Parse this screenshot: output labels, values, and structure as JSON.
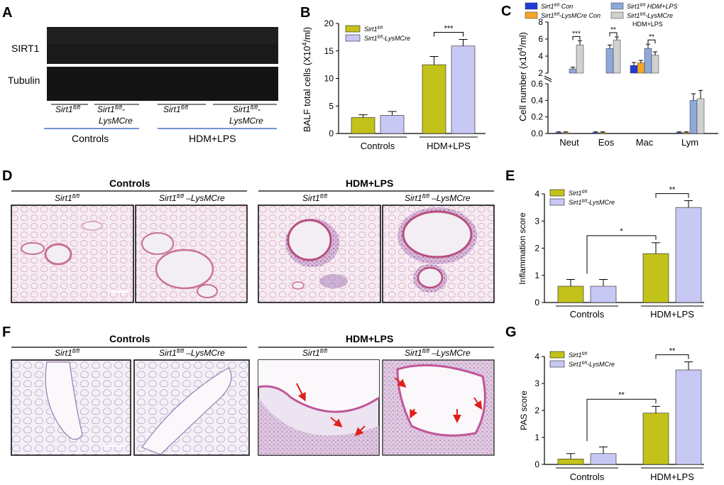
{
  "panels": {
    "A": {
      "letter": "A",
      "row_labels": [
        "SIRT1",
        "Tubulin"
      ],
      "groups": [
        {
          "line1": "Sirt1",
          "sup1": "fl/fl",
          "line2": "",
          "sup2": ""
        },
        {
          "line1": "Sirt1",
          "sup1": "fl/fl",
          "line1b": "-",
          "line2": "LysMCre"
        },
        {
          "line1": "Sirt1",
          "sup1": "fl/fl",
          "line2": "",
          "sup2": ""
        },
        {
          "line1": "Sirt1",
          "sup1": "fl/fl",
          "line1b": "-",
          "line2": "LysMCre"
        }
      ],
      "conditions": [
        "Controls",
        "HDM+LPS"
      ]
    },
    "B": {
      "letter": "B"
    },
    "C": {
      "letter": "C"
    },
    "D": {
      "letter": "D",
      "headers": [
        "Controls",
        "HDM+LPS"
      ],
      "subheaders": [
        "Sirt1",
        "Sirt1",
        "Sirt1",
        "Sirt1"
      ],
      "subsup": [
        "fl/fl",
        "fl/fl",
        "fl/fl",
        "fl/fl"
      ],
      "subsuffix": [
        "",
        " –LysMCre",
        "",
        " –LysMCre"
      ]
    },
    "E": {
      "letter": "E"
    },
    "F": {
      "letter": "F",
      "headers": [
        "Controls",
        "HDM+LPS"
      ],
      "subheaders": [
        "Sirt1",
        "Sirt1",
        "Sirt1",
        "Sirt1"
      ],
      "subsup": [
        "fl/fl",
        "fl/fl",
        "fl/fl",
        "fl/fl"
      ],
      "subsuffix": [
        "",
        " –LysMCre",
        "",
        " –LysMCre"
      ]
    },
    "G": {
      "letter": "G"
    }
  },
  "colors": {
    "wt": "#c2c21a",
    "ko": "#c8c8f5",
    "c_con_wt": "#1f3cd8",
    "c_con_ko": "#f5a623",
    "c_hdm_wt": "#8eaadb",
    "c_hdm_ko": "#d0d0d0",
    "histo_bg": "#f3e6ef",
    "histo_pink": "#d79bbf",
    "arrow": "#e0211b",
    "divider": "#4472c4"
  },
  "chart_data": [
    {
      "id": "B",
      "type": "bar",
      "categories": [
        "Controls",
        "HDM+LPS"
      ],
      "series": [
        {
          "name": "Sirt1 fl/fl",
          "name_main": "Sirt1",
          "name_sup": "fl/fl",
          "name_suffix": "",
          "values": [
            2.9,
            12.5
          ],
          "errors": [
            0.5,
            1.5
          ]
        },
        {
          "name": "Sirt1 fl/fl-LysMCre",
          "name_main": "Sirt1",
          "name_sup": "fl/fl",
          "name_suffix": "-LysMCre",
          "values": [
            3.3,
            15.9
          ],
          "errors": [
            0.7,
            1.2
          ]
        }
      ],
      "ylabel_main": "BALF total cells (X10",
      "ylabel_sup": "4",
      "ylabel_end": "/ml)",
      "ylim": [
        0,
        20
      ],
      "yticks": [
        0,
        5,
        10,
        15,
        20
      ],
      "significance": [
        {
          "text": "***",
          "group": 1
        }
      ],
      "legend_position": "top-left"
    },
    {
      "id": "C",
      "type": "bar",
      "categories": [
        "Neut",
        "Eos",
        "Mac",
        "Lym"
      ],
      "series": [
        {
          "name": "Sirt1 fl/fl Con",
          "name_main": "Sirt1",
          "name_sup": "fl/fl",
          "name_suffix": " Con",
          "values": [
            0.01,
            0.01,
            2.9,
            0.01
          ],
          "errors": [
            0.01,
            0.01,
            0.35,
            0.01
          ]
        },
        {
          "name": "Sirt1 fl/fl-LysMCre Con",
          "name_main": "Sirt1",
          "name_sup": "fl/fl",
          "name_suffix": "-LysMCre Con",
          "values": [
            0.01,
            0.01,
            3.2,
            0.01
          ],
          "errors": [
            0.01,
            0.01,
            0.3,
            0.01
          ]
        },
        {
          "name": "Sirt1 fl/fl HDM+LPS",
          "name_main": "Sirt1",
          "name_sup": "fl/fl",
          "name_suffix": " HDM+LPS",
          "values": [
            2.5,
            4.9,
            4.9,
            0.4
          ],
          "errors": [
            0.2,
            0.4,
            0.5,
            0.08
          ]
        },
        {
          "name": "Sirt1 fl/fl-LysMCre HDM+LPS",
          "name_main": "Sirt1",
          "name_sup": "fl/fl",
          "name_suffix": "-LysMCre",
          "name_line2": "HDM+LPS",
          "values": [
            5.3,
            5.9,
            4.1,
            0.42
          ],
          "errors": [
            0.5,
            0.35,
            0.4,
            0.1
          ]
        }
      ],
      "ylabel_main": "Cell number (x10",
      "ylabel_sup": "4",
      "ylabel_end": "/ml)",
      "broken_axis": true,
      "upper_ylim": [
        2,
        8
      ],
      "upper_ticks": [
        2,
        4,
        6,
        8
      ],
      "lower_ylim": [
        0,
        0.6
      ],
      "lower_ticks": [
        0.0,
        0.2,
        0.4,
        0.6
      ],
      "significance": [
        {
          "text": "***",
          "group": 0
        },
        {
          "text": "**",
          "group": 1
        },
        {
          "text": "**",
          "group": 2
        }
      ],
      "legend_position": "top"
    },
    {
      "id": "E",
      "type": "bar",
      "categories": [
        "Controls",
        "HDM+LPS"
      ],
      "series": [
        {
          "name": "Sirt1 fl/fl",
          "name_main": "Sirt1",
          "name_sup": "fl/fl",
          "name_suffix": "",
          "values": [
            0.6,
            1.8
          ],
          "errors": [
            0.25,
            0.4
          ]
        },
        {
          "name": "Sirt1 fl/fl-LysMCre",
          "name_main": "Sirt1",
          "name_sup": "fl/fl",
          "name_suffix": "-LysMCre",
          "values": [
            0.6,
            3.5
          ],
          "errors": [
            0.25,
            0.25
          ]
        }
      ],
      "ylabel": "Inflammation score",
      "ylim": [
        0,
        4
      ],
      "yticks": [
        0,
        1,
        2,
        3,
        4
      ],
      "significance": [
        {
          "text": "*",
          "between": "controls-hdm"
        },
        {
          "text": "**",
          "group": 1
        }
      ],
      "legend_position": "top-left"
    },
    {
      "id": "G",
      "type": "bar",
      "categories": [
        "Controls",
        "HDM+LPS"
      ],
      "series": [
        {
          "name": "Sirt1 fl/fl",
          "name_main": "Sirt1",
          "name_sup": "fl/fl",
          "name_suffix": "",
          "values": [
            0.2,
            1.9
          ],
          "errors": [
            0.2,
            0.25
          ]
        },
        {
          "name": "Sirt1 fl/fl-LysMCre",
          "name_main": "Sirt1",
          "name_sup": "fl/fl",
          "name_suffix": "-LysMCre",
          "values": [
            0.4,
            3.5
          ],
          "errors": [
            0.25,
            0.3
          ]
        }
      ],
      "ylabel": "PAS score",
      "ylim": [
        0,
        4
      ],
      "yticks": [
        0,
        1,
        2,
        3,
        4
      ],
      "significance": [
        {
          "text": "**",
          "between": "controls-hdm"
        },
        {
          "text": "**",
          "group": 1
        }
      ],
      "legend_position": "top-left"
    }
  ]
}
